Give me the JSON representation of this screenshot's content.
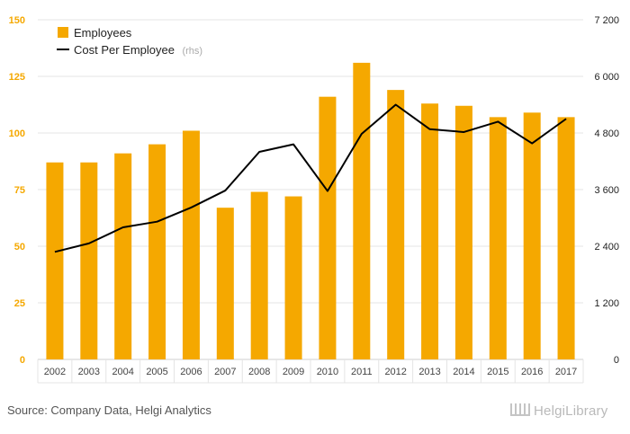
{
  "chart_data": {
    "type": "bar",
    "categories": [
      "2002",
      "2003",
      "2004",
      "2005",
      "2006",
      "2007",
      "2008",
      "2009",
      "2010",
      "2011",
      "2012",
      "2013",
      "2014",
      "2015",
      "2016",
      "2017"
    ],
    "series": [
      {
        "name": "Employees",
        "type": "bar",
        "axis": "left",
        "values": [
          87,
          87,
          91,
          95,
          101,
          67,
          74,
          72,
          116,
          131,
          119,
          113,
          112,
          107,
          109,
          107
        ]
      },
      {
        "name": "Cost Per Employee",
        "type": "line",
        "axis": "right",
        "values": [
          2280,
          2460,
          2800,
          2920,
          3220,
          3580,
          4400,
          4560,
          3570,
          4780,
          5400,
          4880,
          4820,
          5040,
          4580,
          5100
        ]
      }
    ],
    "legend": {
      "position": "top-left",
      "line_note": "(rhs)"
    },
    "left_axis": {
      "ylim": [
        0,
        150
      ],
      "ticks": [
        "0",
        "25",
        "50",
        "75",
        "100",
        "125",
        "150"
      ]
    },
    "right_axis": {
      "ylim": [
        0,
        7200
      ],
      "ticks": [
        "0",
        "1 200",
        "2 400",
        "3 600",
        "4 800",
        "6 000",
        "7 200"
      ]
    },
    "grid": true,
    "colors": {
      "bar": "#f5a800",
      "line": "#000000",
      "grid": "#e4e4e4"
    }
  },
  "footer": {
    "source": "Source: Company Data, Helgi Analytics",
    "logo": "HelgiLibrary"
  }
}
